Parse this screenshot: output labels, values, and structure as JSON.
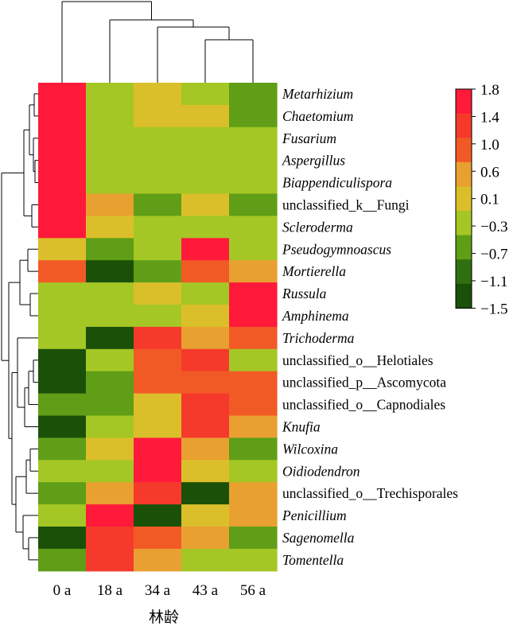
{
  "chart_data": {
    "type": "heatmap",
    "xlabel": "林龄",
    "columns": [
      "0 a",
      "18 a",
      "34 a",
      "43 a",
      "56 a"
    ],
    "rows": [
      {
        "label": "Metarhizium",
        "italic": true,
        "values": [
          1.8,
          -0.3,
          0.1,
          -0.3,
          -0.7
        ]
      },
      {
        "label": "Chaetomium",
        "italic": true,
        "values": [
          1.8,
          -0.3,
          0.1,
          0.1,
          -0.7
        ]
      },
      {
        "label": "Fusarium",
        "italic": true,
        "values": [
          1.8,
          -0.3,
          -0.3,
          -0.3,
          -0.3
        ]
      },
      {
        "label": "Aspergillus",
        "italic": true,
        "values": [
          1.8,
          -0.3,
          -0.3,
          -0.3,
          -0.3
        ]
      },
      {
        "label": "Biappendiculispora",
        "italic": true,
        "values": [
          1.8,
          -0.3,
          -0.3,
          -0.3,
          -0.3
        ]
      },
      {
        "label": "unclassified_k__Fungi",
        "italic": false,
        "values": [
          1.8,
          0.6,
          -0.7,
          0.1,
          -0.7
        ]
      },
      {
        "label": "Scleroderma",
        "italic": true,
        "values": [
          1.8,
          0.1,
          -0.3,
          -0.3,
          -0.3
        ]
      },
      {
        "label": "Pseudogymnoascus",
        "italic": true,
        "values": [
          0.1,
          -0.7,
          -0.3,
          1.8,
          -0.3
        ]
      },
      {
        "label": "Mortierella",
        "italic": true,
        "values": [
          1.0,
          -1.5,
          -0.7,
          1.0,
          0.6
        ]
      },
      {
        "label": "Russula",
        "italic": true,
        "values": [
          -0.3,
          -0.3,
          0.1,
          -0.3,
          1.8
        ]
      },
      {
        "label": "Amphinema",
        "italic": true,
        "values": [
          -0.3,
          -0.3,
          -0.3,
          0.1,
          1.8
        ]
      },
      {
        "label": "Trichoderma",
        "italic": true,
        "values": [
          -0.3,
          -1.5,
          1.4,
          0.6,
          1.0
        ]
      },
      {
        "label": "unclassified_o__Helotiales",
        "italic": false,
        "values": [
          -1.5,
          -0.3,
          1.0,
          1.4,
          -0.3
        ]
      },
      {
        "label": "unclassified_p__Ascomycota",
        "italic": false,
        "values": [
          -1.5,
          -0.7,
          1.0,
          1.0,
          1.0
        ]
      },
      {
        "label": "unclassified_o__Capnodiales",
        "italic": false,
        "values": [
          -0.7,
          -0.7,
          0.1,
          1.4,
          1.0
        ]
      },
      {
        "label": "Knufia",
        "italic": true,
        "values": [
          -1.5,
          -0.3,
          0.1,
          1.4,
          0.6
        ]
      },
      {
        "label": "Wilcoxina",
        "italic": true,
        "values": [
          -0.7,
          0.1,
          1.8,
          0.6,
          -0.7
        ]
      },
      {
        "label": "Oidiodendron",
        "italic": true,
        "values": [
          -0.3,
          -0.3,
          1.8,
          0.1,
          -0.3
        ]
      },
      {
        "label": "unclassified_o__Trechisporales",
        "italic": false,
        "values": [
          -0.7,
          0.6,
          1.4,
          -1.5,
          0.6
        ]
      },
      {
        "label": "Penicillium",
        "italic": true,
        "values": [
          -0.3,
          1.8,
          -1.5,
          0.1,
          0.6
        ]
      },
      {
        "label": "Sagenomella",
        "italic": true,
        "values": [
          -1.5,
          1.4,
          1.0,
          0.6,
          -0.7
        ]
      },
      {
        "label": "Tomentella",
        "italic": true,
        "values": [
          -0.7,
          1.4,
          0.6,
          -0.3,
          -0.3
        ]
      }
    ],
    "color_scale": {
      "ticks": [
        "1.8",
        "1.4",
        "1.0",
        "0.6",
        "0.1",
        "−0.3",
        "−0.7",
        "−1.1",
        "−1.5"
      ],
      "bands": [
        {
          "value": 1.8,
          "color": "#ff1a3a"
        },
        {
          "value": 1.4,
          "color": "#f53a2c"
        },
        {
          "value": 1.0,
          "color": "#f25a25"
        },
        {
          "value": 0.6,
          "color": "#e8a030"
        },
        {
          "value": 0.1,
          "color": "#dbbf2a"
        },
        {
          "value": -0.3,
          "color": "#a4c725"
        },
        {
          "value": -0.7,
          "color": "#5f9e16"
        },
        {
          "value": -1.1,
          "color": "#2f6f10"
        },
        {
          "value": -1.5,
          "color": "#1b5009"
        }
      ]
    }
  }
}
